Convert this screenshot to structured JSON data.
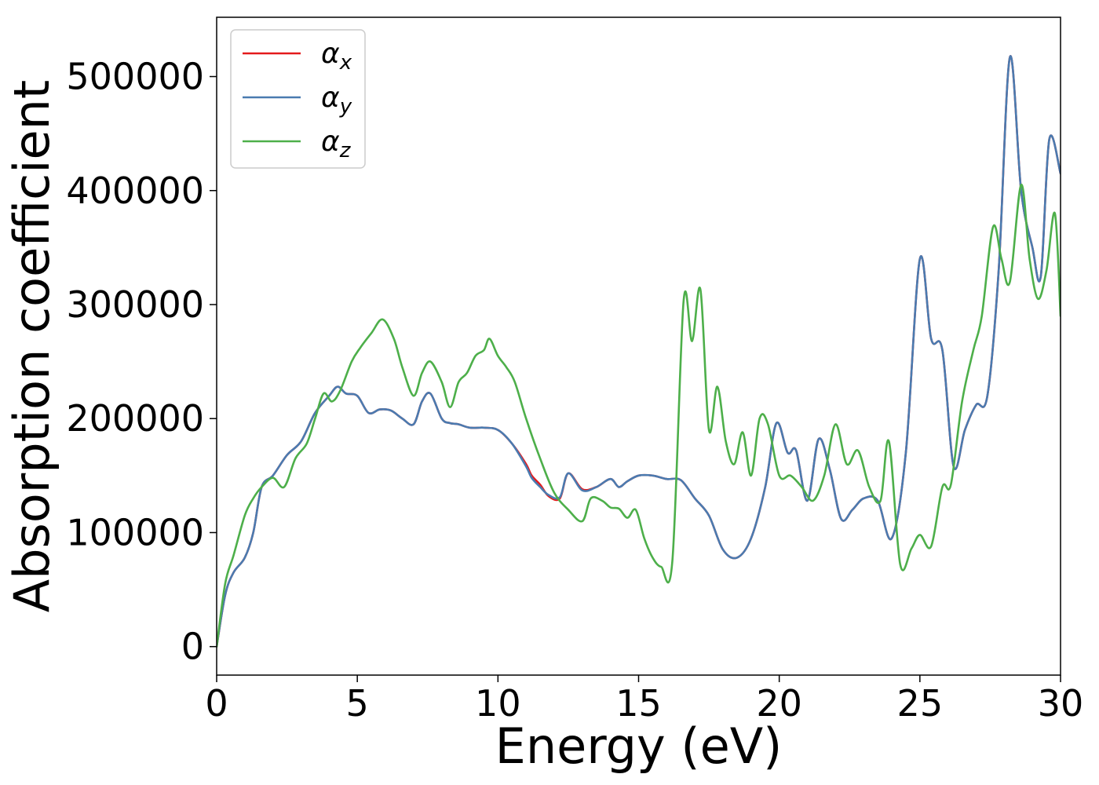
{
  "chart_data": {
    "type": "line",
    "title": "",
    "xlabel": "Energy (eV)",
    "ylabel": "Absorption coefficient",
    "xlim": [
      0,
      30
    ],
    "ylim": [
      -25000,
      552000
    ],
    "xticks": [
      0,
      5,
      10,
      15,
      20,
      25,
      30
    ],
    "yticks": [
      0,
      100000,
      200000,
      300000,
      400000,
      500000
    ],
    "xtick_labels": [
      "0",
      "5",
      "10",
      "15",
      "20",
      "25",
      "30"
    ],
    "ytick_labels": [
      "0",
      "100000",
      "200000",
      "300000",
      "400000",
      "500000"
    ],
    "grid": false,
    "legend_position": "top-left",
    "series": [
      {
        "name": "αx",
        "symbol": "α",
        "subscript": "x",
        "color": "#e41a1c",
        "x": [
          0,
          0.3,
          0.6,
          1,
          1.3,
          1.6,
          2,
          2.5,
          3,
          3.5,
          4,
          4.3,
          4.6,
          5,
          5.4,
          5.8,
          6.2,
          6.6,
          7,
          7.3,
          7.6,
          8,
          8.3,
          8.6,
          9,
          9.5,
          10,
          10.5,
          11,
          11.2,
          11.5,
          11.8,
          12.2,
          12.5,
          13,
          13.5,
          14,
          14.3,
          14.6,
          15,
          15.5,
          16,
          16.5,
          17,
          17.5,
          18,
          18.5,
          19,
          19.5,
          19.9,
          20.3,
          20.6,
          21,
          21.4,
          21.8,
          22.2,
          22.6,
          23,
          23.5,
          24,
          24.5,
          25,
          25.4,
          25.8,
          26.2,
          26.6,
          27,
          27.4,
          27.8,
          28.2,
          28.6,
          29,
          29.3,
          29.6,
          30
        ],
        "y": [
          0,
          45000,
          65000,
          78000,
          100000,
          140000,
          150000,
          168000,
          180000,
          205000,
          220000,
          228000,
          222000,
          220000,
          205000,
          208000,
          207000,
          200000,
          195000,
          215000,
          222000,
          200000,
          196000,
          195000,
          192000,
          192000,
          190000,
          178000,
          160000,
          150000,
          142000,
          132000,
          130000,
          152000,
          138000,
          140000,
          147000,
          140000,
          145000,
          150000,
          150000,
          147000,
          146000,
          130000,
          115000,
          85000,
          78000,
          95000,
          140000,
          196000,
          170000,
          172000,
          128000,
          182000,
          155000,
          112000,
          120000,
          130000,
          128000,
          95000,
          170000,
          340000,
          270000,
          260000,
          158000,
          190000,
          212000,
          220000,
          330000,
          517000,
          400000,
          350000,
          325000,
          445000,
          415000
        ]
      },
      {
        "name": "αy",
        "symbol": "α",
        "subscript": "y",
        "color": "#4a7bb0",
        "x": [
          0,
          0.3,
          0.6,
          1,
          1.3,
          1.6,
          2,
          2.5,
          3,
          3.5,
          4,
          4.3,
          4.6,
          5,
          5.4,
          5.8,
          6.2,
          6.6,
          7,
          7.3,
          7.6,
          8,
          8.3,
          8.6,
          9,
          9.5,
          10,
          10.5,
          11,
          11.2,
          11.5,
          11.8,
          12.2,
          12.5,
          13,
          13.5,
          14,
          14.3,
          14.6,
          15,
          15.5,
          16,
          16.5,
          17,
          17.5,
          18,
          18.5,
          19,
          19.5,
          19.9,
          20.3,
          20.6,
          21,
          21.4,
          21.8,
          22.2,
          22.6,
          23,
          23.5,
          24,
          24.5,
          25,
          25.4,
          25.8,
          26.2,
          26.6,
          27,
          27.4,
          27.8,
          28.2,
          28.6,
          29,
          29.3,
          29.6,
          30
        ],
        "y": [
          0,
          45000,
          65000,
          78000,
          100000,
          140000,
          150000,
          168000,
          180000,
          205000,
          220000,
          228000,
          222000,
          220000,
          205000,
          208000,
          207000,
          200000,
          195000,
          215000,
          222000,
          200000,
          196000,
          195000,
          192000,
          192000,
          190000,
          178000,
          158000,
          148000,
          140000,
          133000,
          131000,
          152000,
          137000,
          140000,
          147000,
          140000,
          145000,
          150000,
          150000,
          147000,
          146000,
          130000,
          115000,
          85000,
          78000,
          95000,
          140000,
          196000,
          170000,
          172000,
          128000,
          182000,
          155000,
          112000,
          120000,
          130000,
          128000,
          95000,
          170000,
          340000,
          270000,
          260000,
          158000,
          190000,
          212000,
          220000,
          330000,
          517000,
          400000,
          350000,
          325000,
          445000,
          415000
        ]
      },
      {
        "name": "αz",
        "symbol": "α",
        "subscript": "z",
        "color": "#4daf4a",
        "x": [
          0,
          0.3,
          0.6,
          1,
          1.3,
          1.6,
          2,
          2.4,
          2.8,
          3.2,
          3.5,
          3.8,
          4.1,
          4.4,
          4.8,
          5.1,
          5.5,
          5.9,
          6.3,
          6.6,
          7,
          7.3,
          7.6,
          8,
          8.3,
          8.6,
          8.9,
          9.2,
          9.5,
          9.7,
          10,
          10.3,
          10.6,
          11,
          11.5,
          12,
          12.5,
          13,
          13.3,
          13.7,
          14,
          14.3,
          14.6,
          14.9,
          15.2,
          15.5,
          15.8,
          16.2,
          16.6,
          16.9,
          17.2,
          17.5,
          17.8,
          18.1,
          18.4,
          18.7,
          19,
          19.3,
          19.6,
          20,
          20.4,
          20.8,
          21.2,
          21.6,
          22,
          22.4,
          22.8,
          23.2,
          23.6,
          23.9,
          24.3,
          24.7,
          25,
          25.4,
          25.8,
          26.1,
          26.5,
          26.9,
          27.2,
          27.6,
          27.9,
          28.2,
          28.6,
          28.9,
          29.2,
          29.5,
          29.8,
          30
        ],
        "y": [
          0,
          55000,
          80000,
          115000,
          130000,
          140000,
          148000,
          140000,
          165000,
          178000,
          200000,
          222000,
          215000,
          225000,
          250000,
          262000,
          275000,
          287000,
          270000,
          245000,
          220000,
          240000,
          250000,
          232000,
          210000,
          232000,
          240000,
          255000,
          260000,
          270000,
          255000,
          245000,
          232000,
          200000,
          165000,
          135000,
          120000,
          110000,
          130000,
          128000,
          122000,
          121000,
          113000,
          120000,
          95000,
          78000,
          70000,
          75000,
          303000,
          268000,
          313000,
          190000,
          228000,
          180000,
          160000,
          188000,
          150000,
          200000,
          195000,
          150000,
          150000,
          140000,
          128000,
          150000,
          195000,
          160000,
          172000,
          140000,
          128000,
          180000,
          72000,
          86000,
          98000,
          88000,
          140000,
          142000,
          215000,
          260000,
          290000,
          368000,
          340000,
          320000,
          405000,
          340000,
          305000,
          330000,
          380000,
          290000
        ]
      }
    ]
  }
}
